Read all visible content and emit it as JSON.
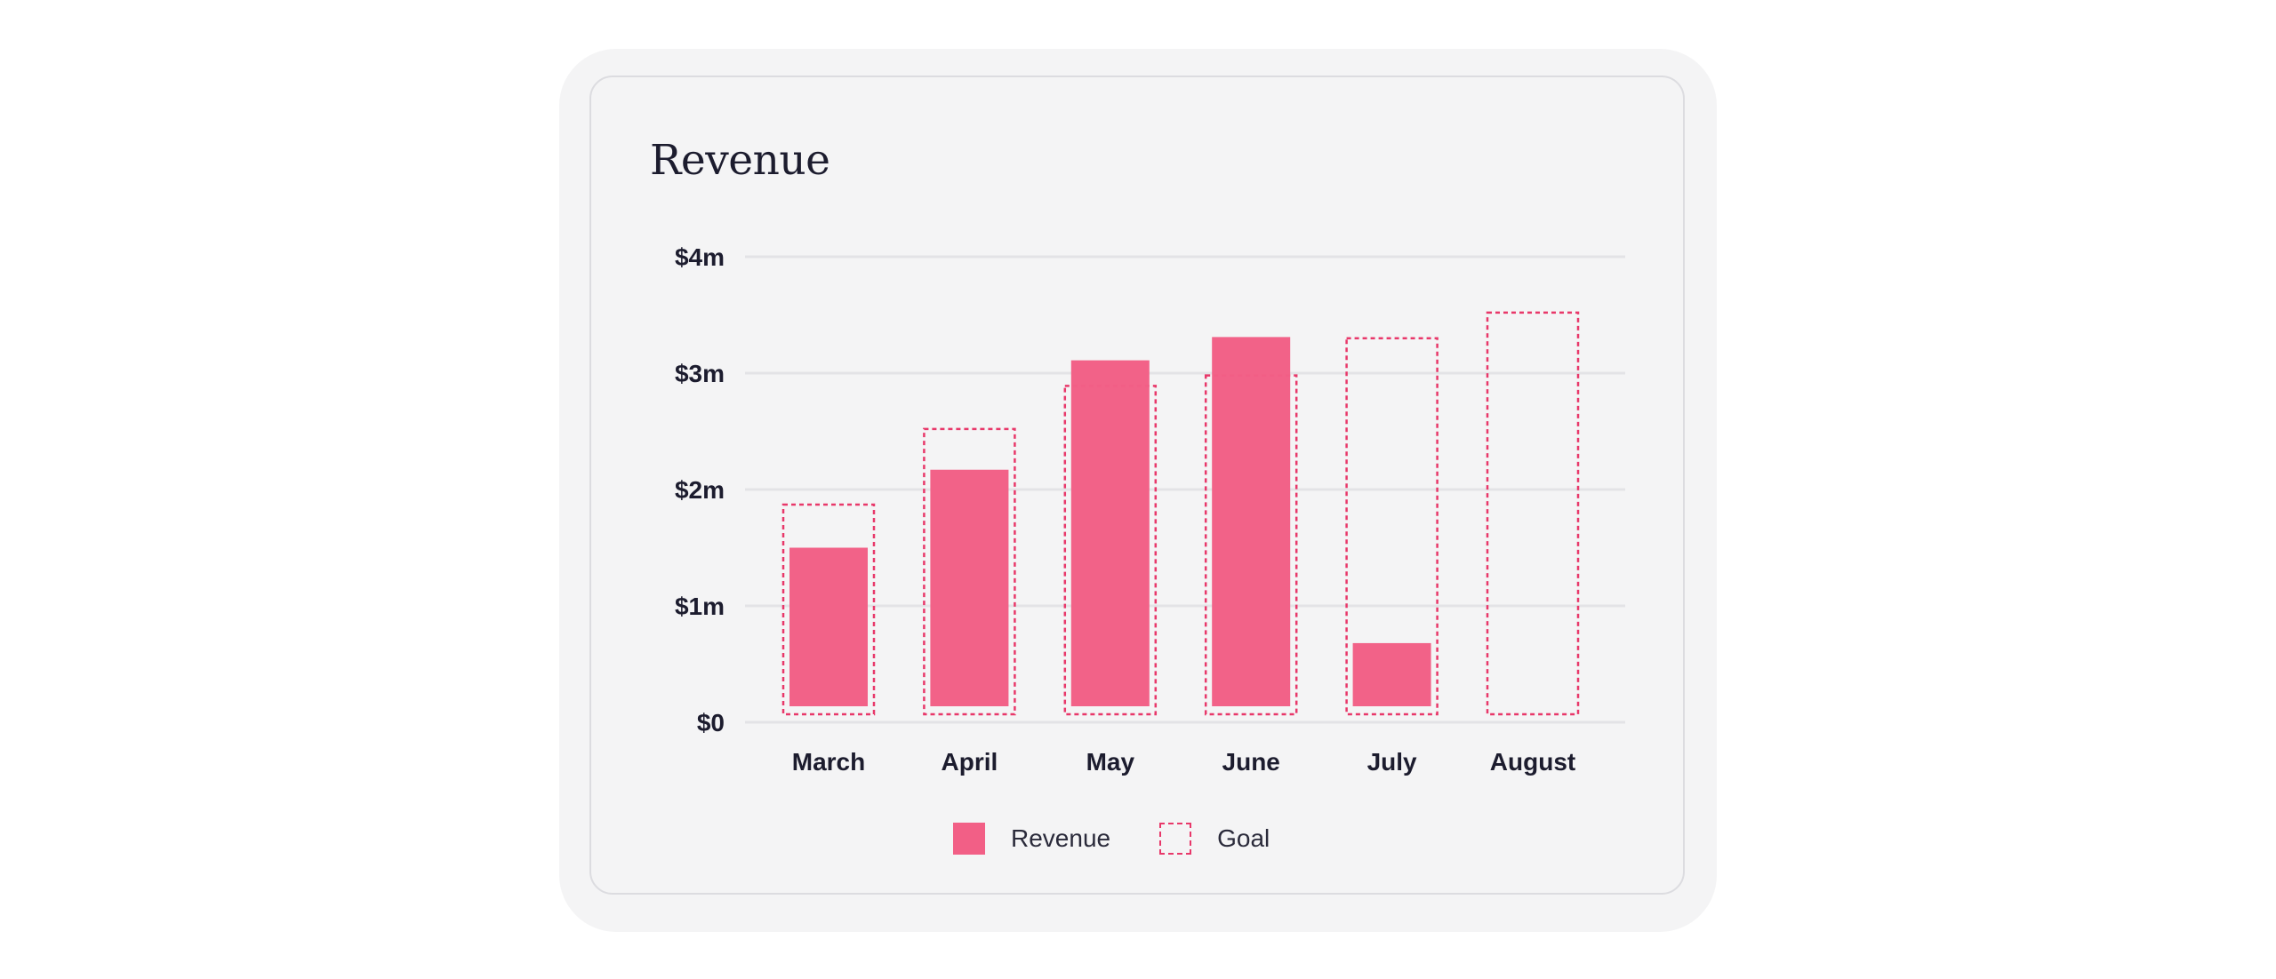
{
  "chart_data": {
    "type": "bar",
    "title": "Revenue",
    "categories": [
      "March",
      "April",
      "May",
      "June",
      "July",
      "August"
    ],
    "series": [
      {
        "name": "Revenue",
        "values": [
          1.38,
          2.05,
          2.99,
          3.19,
          0.56,
          0
        ]
      },
      {
        "name": "Goal",
        "values": [
          1.87,
          2.52,
          2.89,
          2.98,
          3.3,
          3.52
        ]
      }
    ],
    "y_ticks": [
      0,
      1,
      2,
      3,
      4
    ],
    "y_tick_labels": [
      "$0",
      "$1m",
      "$2m",
      "$3m",
      "$4m"
    ],
    "ylim": [
      0,
      4
    ],
    "grid": true,
    "legend_position": "bottom-center",
    "colors": {
      "revenue": "#f25f86",
      "goal": "#e8386a",
      "grid": "#e3e3e6",
      "text": "#1c1c2e"
    }
  }
}
